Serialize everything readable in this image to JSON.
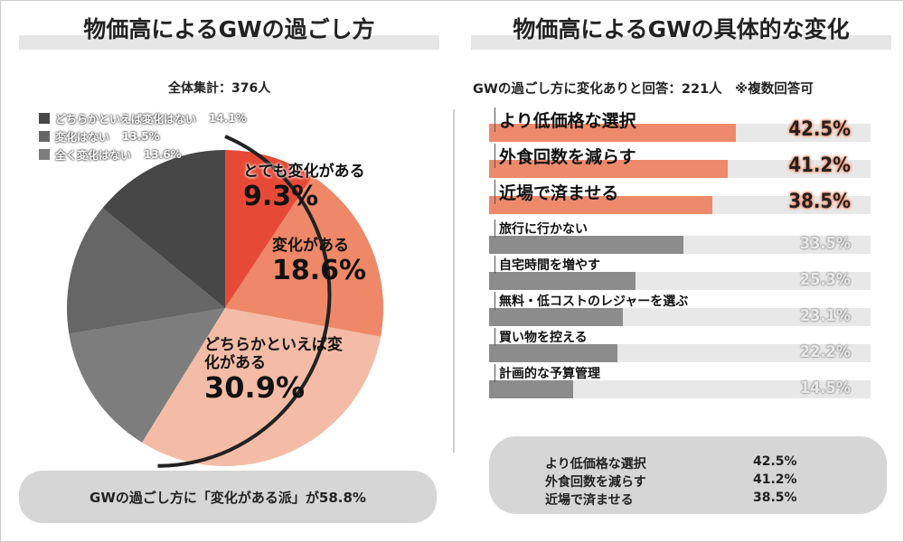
{
  "left": {
    "title": "物価高によるGWの過ごし方",
    "total": "全体集計：376人",
    "summary": "GWの過ごし方に「変化がある派」が58.8%"
  },
  "right": {
    "title": "物価高によるGWの具体的な変化",
    "subtitle": "GWの過ごし方に変化ありと回答：221人　※複数回答可",
    "summary": [
      {
        "label": "より低価格な選択",
        "value": "42.5%"
      },
      {
        "label": "外食回数を減らす",
        "value": "41.2%"
      },
      {
        "label": "近場で済ませる",
        "value": "38.5%"
      }
    ]
  },
  "chart_data": [
    {
      "type": "pie",
      "title": "物価高によるGWの過ごし方",
      "slices": [
        {
          "label": "とても変化がある",
          "value": 9.3,
          "display": "9.3%",
          "color": "#e64a36"
        },
        {
          "label": "変化がある",
          "value": 18.6,
          "display": "18.6%",
          "color": "#ee8868"
        },
        {
          "label": "どちらかといえば変化がある",
          "value": 30.9,
          "display": "30.9%",
          "color": "#f4bca6"
        },
        {
          "label": "全く変化はない",
          "value": 13.6,
          "display": "13.6%",
          "color": "#7d7d7d"
        },
        {
          "label": "変化はない",
          "value": 13.5,
          "display": "13.5%",
          "color": "#666666"
        },
        {
          "label": "どちらかといえば変化はない",
          "value": 14.1,
          "display": "14.1%",
          "color": "#474747"
        }
      ],
      "legend": [
        {
          "label": "どちらかといえば変化はない",
          "display": "14.1%",
          "color": "#474747"
        },
        {
          "label": "変化はない",
          "display": "13.5%",
          "color": "#666666"
        },
        {
          "label": "全く変化はない",
          "display": "13.6%",
          "color": "#7d7d7d"
        }
      ],
      "legend_position": "top-left"
    },
    {
      "type": "bar",
      "orientation": "horizontal",
      "title": "物価高によるGWの具体的な変化",
      "xlim": [
        0,
        50
      ],
      "categories": [
        "より低価格な選択",
        "外食回数を減らす",
        "近場で済ませる",
        "旅行に行かない",
        "自宅時間を増やす",
        "無料・低コストのレジャーを選ぶ",
        "買い物を控える",
        "計画的な予算管理"
      ],
      "values": [
        42.5,
        41.2,
        38.5,
        33.5,
        25.3,
        23.1,
        22.2,
        14.5
      ],
      "labels": [
        "42.5%",
        "41.2%",
        "38.5%",
        "33.5%",
        "25.3%",
        "23.1%",
        "22.2%",
        "14.5%"
      ],
      "highlight_color": "#ee8a6c",
      "base_color": "#8c8c8c"
    }
  ]
}
